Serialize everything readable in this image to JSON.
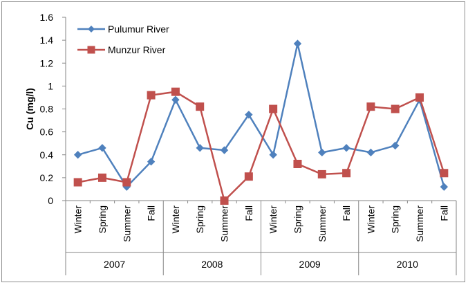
{
  "chart_data": {
    "type": "line",
    "ylabel": "Cu (mg/l)",
    "xlabel": "",
    "ylim": [
      0,
      1.6
    ],
    "yticks": [
      "0",
      "0.2",
      "0.4",
      "0.6",
      "0.8",
      "1",
      "1.2",
      "1.4",
      "1.6"
    ],
    "grid": false,
    "legend_position": "top-left",
    "categories": [
      "Winter",
      "Spring",
      "Summer",
      "Fall",
      "Winter",
      "Spring",
      "Summer",
      "Fall",
      "Winter",
      "Spring",
      "Summer",
      "Fall",
      "Winter",
      "Spring",
      "Summer",
      "Fall"
    ],
    "groups": [
      "2007",
      "2008",
      "2009",
      "2010"
    ],
    "series": [
      {
        "name": "Pulumur River",
        "color": "#4f81bd",
        "marker": "diamond",
        "values": [
          0.4,
          0.46,
          0.12,
          0.34,
          0.88,
          0.46,
          0.44,
          0.75,
          0.4,
          1.37,
          0.42,
          0.46,
          0.42,
          0.48,
          0.88,
          0.12
        ]
      },
      {
        "name": "Munzur River",
        "color": "#c0504d",
        "marker": "square",
        "values": [
          0.16,
          0.2,
          0.16,
          0.92,
          0.95,
          0.82,
          0.0,
          0.21,
          0.8,
          0.32,
          0.23,
          0.24,
          0.82,
          0.8,
          0.9,
          0.24
        ]
      }
    ]
  }
}
